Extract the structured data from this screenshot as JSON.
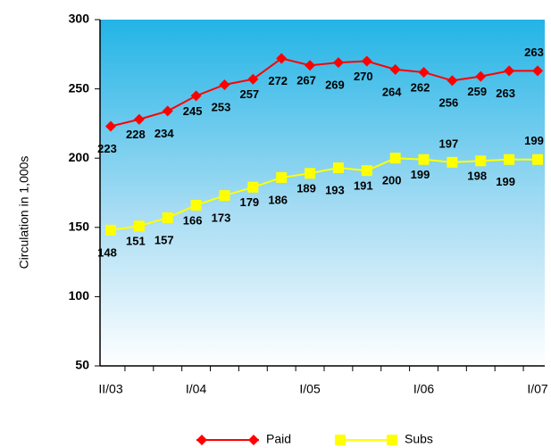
{
  "chart_data": {
    "type": "line",
    "ylabel": "Circulation in 1,000s",
    "categories": [
      "II/03",
      null,
      null,
      "I/04",
      null,
      null,
      null,
      "I/05",
      null,
      null,
      null,
      "I/06",
      null,
      null,
      null,
      "I/07"
    ],
    "series": [
      {
        "name": "Paid",
        "color": "#ff0000",
        "marker": "diamond",
        "values": [
          223,
          228,
          234,
          245,
          253,
          257,
          272,
          267,
          269,
          270,
          264,
          262,
          256,
          259,
          263,
          263
        ]
      },
      {
        "name": "Subs",
        "color": "#ffff00",
        "marker": "square",
        "values": [
          148,
          151,
          157,
          166,
          173,
          179,
          186,
          189,
          193,
          191,
          200,
          199,
          197,
          198,
          199,
          199
        ]
      }
    ],
    "ylim": [
      50,
      300
    ],
    "yticks": [
      50,
      100,
      150,
      200,
      250,
      300
    ]
  }
}
